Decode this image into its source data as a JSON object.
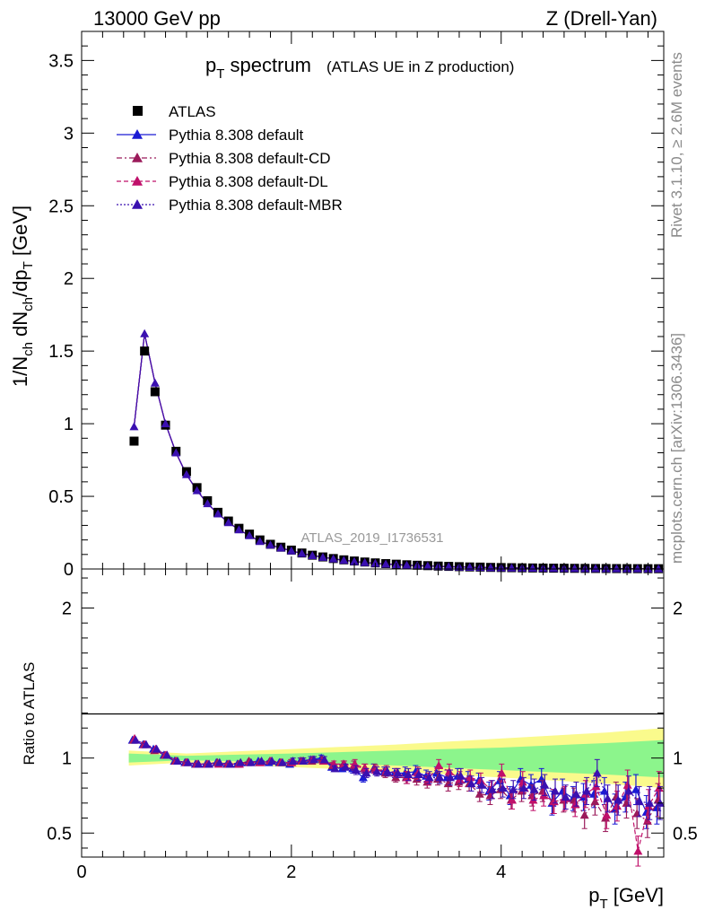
{
  "header": {
    "left": "13000 GeV pp",
    "right": "Z (Drell-Yan)"
  },
  "title": {
    "main": "p",
    "main_sub": "T",
    "main_rest": " spectrum",
    "detail": "(ATLAS UE in Z production)"
  },
  "side_texts": {
    "rivet": "Rivet 3.1.10, ≥ 2.6M events",
    "mcplots": "mcplots.cern.ch [arXiv:1306.3436]"
  },
  "analysis_label": "ATLAS_2019_I1736531",
  "ylabel_top": {
    "parts": [
      "1/N",
      "ch",
      " dN",
      "ch",
      "/dp",
      "T",
      " [GeV]"
    ]
  },
  "ylabel_bottom": "Ratio to ATLAS",
  "xlabel": {
    "main": "p",
    "sub": "T",
    "rest": " [GeV]"
  },
  "legend": [
    {
      "label": "ATLAS",
      "marker": "square",
      "color": "#000000",
      "line": "none"
    },
    {
      "label": "Pythia 8.308 default",
      "marker": "triangle",
      "color": "#1a1ad4",
      "line": "solid"
    },
    {
      "label": "Pythia 8.308 default-CD",
      "marker": "triangle",
      "color": "#9b1a5a",
      "line": "dashdot"
    },
    {
      "label": "Pythia 8.308 default-DL",
      "marker": "triangle",
      "color": "#c0106a",
      "line": "dashed"
    },
    {
      "label": "Pythia 8.308 default-MBR",
      "marker": "triangle",
      "color": "#3a10b0",
      "line": "dotted"
    }
  ],
  "chart_data": {
    "type": "scatter",
    "xlim": [
      0,
      5.55
    ],
    "top": {
      "ylim": [
        0,
        3.7
      ],
      "yticks": [
        0,
        0.5,
        1,
        1.5,
        2,
        2.5,
        3,
        3.5
      ],
      "ytick_labels": [
        "0",
        "0.5",
        "1",
        "1.5",
        "2",
        "2.5",
        "3",
        "3.5"
      ],
      "x": [
        0.5,
        0.6,
        0.7,
        0.8,
        0.9,
        1.0,
        1.1,
        1.2,
        1.3,
        1.4,
        1.5,
        1.6,
        1.7,
        1.8,
        1.9,
        2.0,
        2.1,
        2.2,
        2.3,
        2.4,
        2.5,
        2.6,
        2.7,
        2.8,
        2.9,
        3.0,
        3.1,
        3.2,
        3.3,
        3.4,
        3.5,
        3.6,
        3.7,
        3.8,
        3.9,
        4.0,
        4.1,
        4.2,
        4.3,
        4.4,
        4.5,
        4.6,
        4.7,
        4.8,
        4.9,
        5.0,
        5.1,
        5.2,
        5.3,
        5.4,
        5.5
      ],
      "atlas": [
        0.88,
        1.5,
        1.22,
        0.99,
        0.81,
        0.67,
        0.56,
        0.47,
        0.39,
        0.33,
        0.28,
        0.24,
        0.2,
        0.17,
        0.15,
        0.13,
        0.11,
        0.095,
        0.083,
        0.072,
        0.063,
        0.055,
        0.048,
        0.042,
        0.037,
        0.033,
        0.029,
        0.026,
        0.023,
        0.02,
        0.018,
        0.016,
        0.014,
        0.013,
        0.011,
        0.01,
        0.009,
        0.008,
        0.0072,
        0.0064,
        0.0057,
        0.0051,
        0.0046,
        0.0041,
        0.0037,
        0.0033,
        0.003,
        0.0027,
        0.0024,
        0.0022,
        0.002
      ],
      "mc": [
        0.98,
        1.62,
        1.28,
        1.0,
        0.8,
        0.65,
        0.54,
        0.45,
        0.38,
        0.32,
        0.27,
        0.23,
        0.19,
        0.165,
        0.145,
        0.125,
        0.107,
        0.093,
        0.081,
        0.07,
        0.06,
        0.052,
        0.045,
        0.039,
        0.034,
        0.03,
        0.026,
        0.023,
        0.02,
        0.018,
        0.016,
        0.014,
        0.012,
        0.011,
        0.0095,
        0.0085,
        0.0075,
        0.0067,
        0.006,
        0.0053,
        0.0047,
        0.0042,
        0.0038,
        0.0034,
        0.003,
        0.0027,
        0.0024,
        0.0022,
        0.002,
        0.0018,
        0.0016
      ]
    },
    "bottom": {
      "ylim": [
        0.34,
        2.26
      ],
      "yticks": [
        0.5,
        1,
        2
      ],
      "ytick_labels": [
        "0.5",
        "1",
        "2"
      ],
      "band_inner": {
        "x": [
          0.45,
          1.0,
          2.0,
          3.0,
          4.0,
          5.0,
          5.55
        ],
        "lo": [
          0.97,
          0.985,
          0.97,
          0.95,
          0.92,
          0.89,
          0.87
        ],
        "hi": [
          1.03,
          1.015,
          1.03,
          1.05,
          1.07,
          1.1,
          1.12
        ]
      },
      "band_outer": {
        "x": [
          0.45,
          1.0,
          2.0,
          3.0,
          4.0,
          5.0,
          5.55
        ],
        "lo": [
          0.95,
          0.97,
          0.94,
          0.91,
          0.87,
          0.83,
          0.8
        ],
        "hi": [
          1.05,
          1.03,
          1.06,
          1.09,
          1.13,
          1.17,
          1.2
        ]
      },
      "x": [
        0.5,
        0.6,
        0.7,
        0.8,
        0.9,
        1.0,
        1.1,
        1.2,
        1.3,
        1.4,
        1.5,
        1.6,
        1.7,
        1.8,
        1.9,
        2.0,
        2.1,
        2.2,
        2.3,
        2.4,
        2.5,
        2.6,
        2.7,
        2.8,
        2.9,
        3.0,
        3.1,
        3.2,
        3.3,
        3.4,
        3.5,
        3.6,
        3.7,
        3.8,
        3.9,
        4.0,
        4.1,
        4.2,
        4.3,
        4.4,
        4.5,
        4.6,
        4.7,
        4.8,
        4.9,
        5.0,
        5.1,
        5.2,
        5.3,
        5.4,
        5.5
      ],
      "series": [
        {
          "name": "Pythia 8.308 default",
          "color": "#1a1ad4",
          "dash": "",
          "values": [
            1.12,
            1.09,
            1.06,
            1.02,
            0.98,
            0.97,
            0.96,
            0.96,
            0.97,
            0.96,
            0.96,
            0.97,
            0.98,
            0.97,
            0.97,
            0.96,
            0.98,
            0.99,
            1.0,
            0.94,
            0.93,
            0.93,
            0.87,
            0.93,
            0.91,
            0.9,
            0.9,
            0.91,
            0.88,
            0.9,
            0.87,
            0.88,
            0.86,
            0.85,
            0.78,
            0.85,
            0.75,
            0.86,
            0.82,
            0.86,
            0.7,
            0.78,
            0.73,
            0.74,
            0.76,
            0.78,
            0.66,
            0.74,
            0.79,
            0.64,
            0.67
          ],
          "err": [
            0.01,
            0.01,
            0.01,
            0.01,
            0.01,
            0.01,
            0.01,
            0.01,
            0.01,
            0.01,
            0.01,
            0.01,
            0.01,
            0.01,
            0.01,
            0.02,
            0.02,
            0.02,
            0.02,
            0.02,
            0.02,
            0.03,
            0.03,
            0.03,
            0.03,
            0.03,
            0.04,
            0.04,
            0.04,
            0.04,
            0.05,
            0.05,
            0.05,
            0.05,
            0.06,
            0.06,
            0.06,
            0.07,
            0.07,
            0.07,
            0.08,
            0.08,
            0.08,
            0.09,
            0.09,
            0.09,
            0.1,
            0.1,
            0.1,
            0.11,
            0.11
          ]
        },
        {
          "name": "Pythia 8.308 default-CD",
          "color": "#9b1a5a",
          "dash": "6,3,2,3",
          "values": [
            1.12,
            1.09,
            1.05,
            1.02,
            0.98,
            0.97,
            0.96,
            0.96,
            0.97,
            0.96,
            0.96,
            0.98,
            0.97,
            0.98,
            0.97,
            0.97,
            0.98,
            0.98,
            0.99,
            0.95,
            0.96,
            0.95,
            0.93,
            0.93,
            0.9,
            0.87,
            0.87,
            0.86,
            0.84,
            0.86,
            0.83,
            0.84,
            0.83,
            0.76,
            0.75,
            0.79,
            0.72,
            0.78,
            0.75,
            0.78,
            0.71,
            0.72,
            0.72,
            0.62,
            0.71,
            0.6,
            0.74,
            0.7,
            0.63,
            0.58,
            0.72
          ],
          "err": [
            0.01,
            0.01,
            0.01,
            0.01,
            0.01,
            0.01,
            0.01,
            0.01,
            0.01,
            0.01,
            0.01,
            0.01,
            0.01,
            0.01,
            0.01,
            0.02,
            0.02,
            0.02,
            0.02,
            0.02,
            0.02,
            0.03,
            0.03,
            0.03,
            0.03,
            0.03,
            0.04,
            0.04,
            0.04,
            0.04,
            0.05,
            0.05,
            0.05,
            0.05,
            0.06,
            0.06,
            0.06,
            0.07,
            0.07,
            0.07,
            0.08,
            0.08,
            0.08,
            0.09,
            0.09,
            0.09,
            0.1,
            0.1,
            0.1,
            0.11,
            0.11
          ]
        },
        {
          "name": "Pythia 8.308 default-DL",
          "color": "#c0106a",
          "dash": "5,3",
          "values": [
            1.13,
            1.09,
            1.06,
            1.02,
            0.98,
            0.97,
            0.96,
            0.96,
            0.96,
            0.96,
            0.96,
            0.97,
            0.97,
            0.98,
            0.97,
            0.97,
            0.98,
            0.99,
            0.98,
            0.96,
            0.96,
            0.96,
            0.93,
            0.92,
            0.92,
            0.9,
            0.87,
            0.9,
            0.86,
            0.95,
            0.91,
            0.86,
            0.87,
            0.85,
            0.79,
            0.9,
            0.72,
            0.84,
            0.72,
            0.75,
            0.71,
            0.73,
            0.69,
            0.76,
            0.81,
            0.62,
            0.68,
            0.82,
            0.38,
            0.68,
            0.8
          ],
          "err": [
            0.01,
            0.01,
            0.01,
            0.01,
            0.01,
            0.01,
            0.01,
            0.01,
            0.01,
            0.01,
            0.01,
            0.01,
            0.01,
            0.01,
            0.01,
            0.02,
            0.02,
            0.02,
            0.02,
            0.02,
            0.02,
            0.03,
            0.03,
            0.03,
            0.03,
            0.03,
            0.04,
            0.04,
            0.04,
            0.04,
            0.05,
            0.05,
            0.05,
            0.05,
            0.06,
            0.06,
            0.06,
            0.07,
            0.07,
            0.07,
            0.08,
            0.08,
            0.08,
            0.09,
            0.09,
            0.09,
            0.1,
            0.1,
            0.1,
            0.11,
            0.11
          ]
        },
        {
          "name": "Pythia 8.308 default-MBR",
          "color": "#3a10b0",
          "dash": "2,2",
          "values": [
            1.12,
            1.09,
            1.06,
            1.02,
            0.98,
            0.97,
            0.96,
            0.96,
            0.97,
            0.96,
            0.97,
            0.97,
            0.98,
            0.98,
            0.97,
            0.98,
            0.98,
            0.99,
            0.99,
            0.93,
            0.94,
            0.92,
            0.9,
            0.91,
            0.91,
            0.9,
            0.89,
            0.89,
            0.87,
            0.87,
            0.87,
            0.88,
            0.83,
            0.82,
            0.79,
            0.8,
            0.79,
            0.8,
            0.79,
            0.82,
            0.78,
            0.74,
            0.76,
            0.78,
            0.9,
            0.73,
            0.72,
            0.78,
            0.71,
            0.7,
            0.7
          ],
          "err": [
            0.01,
            0.01,
            0.01,
            0.01,
            0.01,
            0.01,
            0.01,
            0.01,
            0.01,
            0.01,
            0.01,
            0.01,
            0.01,
            0.01,
            0.01,
            0.02,
            0.02,
            0.02,
            0.02,
            0.02,
            0.02,
            0.03,
            0.03,
            0.03,
            0.03,
            0.03,
            0.04,
            0.04,
            0.04,
            0.04,
            0.05,
            0.05,
            0.05,
            0.05,
            0.06,
            0.06,
            0.06,
            0.07,
            0.07,
            0.07,
            0.08,
            0.08,
            0.08,
            0.09,
            0.09,
            0.09,
            0.1,
            0.1,
            0.1,
            0.11,
            0.11
          ]
        }
      ]
    },
    "xticks": [
      0,
      2,
      4
    ],
    "xtick_labels": [
      "0",
      "2",
      "4"
    ],
    "colors": {
      "band_inner": "#8cf58c",
      "band_outer": "#fafa8c"
    }
  }
}
